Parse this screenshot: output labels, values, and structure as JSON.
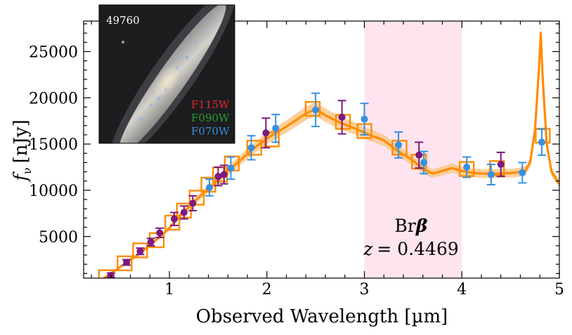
{
  "chart_data": {
    "type": "scatter",
    "title": "",
    "xlabel": "Observed Wavelength [µm]",
    "ylabel": "f_ν [nJy]",
    "ylabel_main": "f",
    "ylabel_sub": "ν",
    "ylabel_unit": "[nJy]",
    "xlim": [
      0.12,
      5.0
    ],
    "ylim": [
      500,
      28300
    ],
    "x_ticks": [
      1,
      2,
      3,
      4,
      5
    ],
    "y_ticks": [
      5000,
      10000,
      15000,
      20000,
      25000
    ],
    "x_tick_labels": [
      "1",
      "2",
      "3",
      "4",
      "5"
    ],
    "y_tick_labels": [
      "5000",
      "10000",
      "15000",
      "20000",
      "25000"
    ],
    "grid": false,
    "highlight_band": {
      "x": [
        3.0,
        4.0
      ],
      "color": "#fde4ef"
    },
    "annotations": {
      "line_label": "Brβ",
      "redshift_label": "z = 0.4469",
      "line_label_text": "Br",
      "line_label_symbol": "β",
      "redshift_symbol": "z",
      "redshift_value": "= 0.4469",
      "position": [
        3.5,
        6000
      ]
    },
    "inset": {
      "object_id": "49760",
      "filters": [
        {
          "name": "F115W",
          "color": "#e8262a"
        },
        {
          "name": "F090W",
          "color": "#2e9c2e"
        },
        {
          "name": "F070W",
          "color": "#3a8fe0"
        }
      ]
    },
    "colors": {
      "model": "#ff8c00",
      "model_band": "#fbc88a",
      "blue_points": "#3890e0",
      "purple_points": "#7b1a7f",
      "boxes": "#ff8c00"
    },
    "series": [
      {
        "marker": "circle",
        "color": "#3890e0",
        "points": [
          {
            "x": 1.41,
            "y": 10300,
            "err": 900
          },
          {
            "x": 1.63,
            "y": 12400,
            "err": 1200
          },
          {
            "x": 1.84,
            "y": 14600,
            "err": 1300
          },
          {
            "x": 2.09,
            "y": 16700,
            "err": 1500
          },
          {
            "x": 2.5,
            "y": 18700,
            "err": 1800
          },
          {
            "x": 3.0,
            "y": 17700,
            "err": 1700
          },
          {
            "x": 3.35,
            "y": 14900,
            "err": 1400
          },
          {
            "x": 3.61,
            "y": 13000,
            "err": 1200
          },
          {
            "x": 4.05,
            "y": 12500,
            "err": 1100
          },
          {
            "x": 4.3,
            "y": 11700,
            "err": 1100
          },
          {
            "x": 4.62,
            "y": 11900,
            "err": 1100
          },
          {
            "x": 4.82,
            "y": 15200,
            "err": 1400
          }
        ]
      },
      {
        "marker": "circle",
        "color": "#7b1a7f",
        "points": [
          {
            "x": 0.4,
            "y": 800,
            "err": 250
          },
          {
            "x": 0.56,
            "y": 2200,
            "err": 300
          },
          {
            "x": 0.7,
            "y": 3400,
            "err": 350
          },
          {
            "x": 0.81,
            "y": 4400,
            "err": 400
          },
          {
            "x": 0.9,
            "y": 5400,
            "err": 500
          },
          {
            "x": 1.05,
            "y": 6900,
            "err": 700
          },
          {
            "x": 1.15,
            "y": 7600,
            "err": 700
          },
          {
            "x": 1.24,
            "y": 8600,
            "err": 800
          },
          {
            "x": 1.5,
            "y": 11500,
            "err": 1000
          },
          {
            "x": 1.56,
            "y": 11700,
            "err": 1000
          },
          {
            "x": 1.99,
            "y": 16200,
            "err": 1600
          },
          {
            "x": 2.77,
            "y": 17900,
            "err": 1800
          },
          {
            "x": 3.56,
            "y": 13800,
            "err": 1400
          },
          {
            "x": 4.4,
            "y": 12800,
            "err": 1300
          }
        ]
      }
    ],
    "boxes": [
      {
        "x": 0.35,
        "y": 600
      },
      {
        "x": 0.54,
        "y": 2100
      },
      {
        "x": 0.7,
        "y": 3500
      },
      {
        "x": 0.87,
        "y": 4600
      },
      {
        "x": 1.03,
        "y": 6500
      },
      {
        "x": 1.15,
        "y": 7800
      },
      {
        "x": 1.28,
        "y": 9200
      },
      {
        "x": 1.4,
        "y": 10600
      },
      {
        "x": 1.52,
        "y": 11700
      },
      {
        "x": 1.64,
        "y": 12900
      },
      {
        "x": 1.87,
        "y": 14600
      },
      {
        "x": 2.05,
        "y": 15500
      },
      {
        "x": 2.47,
        "y": 18800
      },
      {
        "x": 2.78,
        "y": 17400
      },
      {
        "x": 3.0,
        "y": 16400
      },
      {
        "x": 3.36,
        "y": 14600
      },
      {
        "x": 3.56,
        "y": 13100
      },
      {
        "x": 4.05,
        "y": 12300
      },
      {
        "x": 4.36,
        "y": 12400
      },
      {
        "x": 4.83,
        "y": 15900
      }
    ],
    "model_curve": [
      [
        0.12,
        0
      ],
      [
        0.3,
        300
      ],
      [
        0.4,
        1000
      ],
      [
        0.55,
        2100
      ],
      [
        0.7,
        3200
      ],
      [
        0.85,
        4500
      ],
      [
        1.0,
        5900
      ],
      [
        1.1,
        7200
      ],
      [
        1.2,
        8200
      ],
      [
        1.35,
        9700
      ],
      [
        1.5,
        11100
      ],
      [
        1.6,
        12100
      ],
      [
        1.7,
        13000
      ],
      [
        1.85,
        14400
      ],
      [
        2.0,
        15600
      ],
      [
        2.2,
        16900
      ],
      [
        2.4,
        18300
      ],
      [
        2.5,
        18800
      ],
      [
        2.6,
        18100
      ],
      [
        2.75,
        17300
      ],
      [
        2.9,
        16700
      ],
      [
        3.05,
        16000
      ],
      [
        3.2,
        15400
      ],
      [
        3.35,
        14200
      ],
      [
        3.5,
        13200
      ],
      [
        3.6,
        12300
      ],
      [
        3.7,
        11800
      ],
      [
        3.8,
        12100
      ],
      [
        3.9,
        12400
      ],
      [
        4.0,
        12100
      ],
      [
        4.1,
        11900
      ],
      [
        4.2,
        11800
      ],
      [
        4.4,
        11800
      ],
      [
        4.55,
        11900
      ],
      [
        4.65,
        12100
      ],
      [
        4.7,
        13000
      ],
      [
        4.75,
        16500
      ],
      [
        4.79,
        23000
      ],
      [
        4.81,
        27000
      ],
      [
        4.83,
        22000
      ],
      [
        4.87,
        15000
      ],
      [
        4.92,
        12000
      ],
      [
        5.0,
        10700
      ]
    ]
  }
}
